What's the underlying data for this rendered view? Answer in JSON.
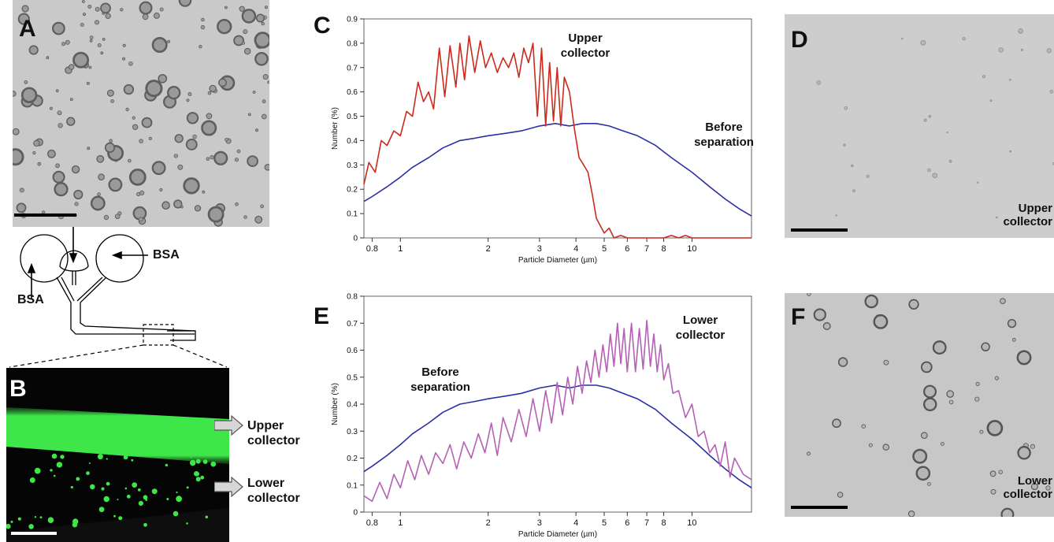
{
  "panels": {
    "A": {
      "letter": "A"
    },
    "B": {
      "letter": "B",
      "labels": {
        "upper": "Upper\ncollector",
        "lower": "Lower\ncollector"
      }
    },
    "C": {
      "letter": "C"
    },
    "D": {
      "letter": "D",
      "label": "Upper\ncollector"
    },
    "E": {
      "letter": "E"
    },
    "F": {
      "letter": "F",
      "label": "Lower\ncollector"
    }
  },
  "device": {
    "bsa_left": "BSA",
    "bsa_right": "BSA"
  },
  "colors": {
    "before": "#2b2fa4",
    "upper": "#cc2a1c",
    "lower": "#b560b5",
    "fluor": "#3ee64a"
  },
  "chart_data": [
    {
      "id": "C",
      "type": "line",
      "xlabel": "Particle Diameter (µm)",
      "ylabel": "Number (%)",
      "xscale": "log",
      "xlim": [
        0.75,
        16
      ],
      "ylim": [
        0,
        0.9
      ],
      "x_ticks": [
        0.8,
        1,
        2,
        3,
        4,
        5,
        6,
        7,
        8,
        10
      ],
      "x_tick_labels": [
        "0.8",
        "1",
        "2",
        "3",
        "4",
        "5",
        "6",
        "7",
        "8",
        "10"
      ],
      "y_ticks": [
        0,
        0.1,
        0.2,
        0.3,
        0.4,
        0.5,
        0.6,
        0.7,
        0.8,
        0.9
      ],
      "y_tick_labels": [
        "0",
        "0.1",
        "0.2",
        "0.3",
        "0.4",
        "0.5",
        "0.6",
        "0.7",
        "0.8",
        "0.9"
      ],
      "annotations": [
        "Upper\ncollector",
        "Before\nseparation"
      ],
      "series": [
        {
          "name": "Before\nseparation",
          "color": "#2b2fa4",
          "x": [
            0.75,
            0.8,
            0.9,
            1.0,
            1.1,
            1.25,
            1.4,
            1.6,
            1.8,
            2.0,
            2.3,
            2.6,
            3.0,
            3.4,
            3.8,
            4.2,
            4.7,
            5.2,
            5.8,
            6.5,
            7.5,
            8.5,
            10,
            11.5,
            13,
            14.5,
            16
          ],
          "y": [
            0.15,
            0.17,
            0.21,
            0.25,
            0.29,
            0.33,
            0.37,
            0.4,
            0.41,
            0.42,
            0.43,
            0.44,
            0.46,
            0.47,
            0.46,
            0.47,
            0.47,
            0.46,
            0.44,
            0.42,
            0.38,
            0.33,
            0.27,
            0.21,
            0.16,
            0.12,
            0.09
          ]
        },
        {
          "name": "Upper\ncollector",
          "color": "#cc2a1c",
          "x": [
            0.75,
            0.78,
            0.82,
            0.86,
            0.9,
            0.95,
            1.0,
            1.05,
            1.1,
            1.15,
            1.2,
            1.25,
            1.3,
            1.36,
            1.42,
            1.48,
            1.55,
            1.6,
            1.66,
            1.72,
            1.8,
            1.88,
            1.96,
            2.05,
            2.15,
            2.25,
            2.35,
            2.45,
            2.55,
            2.65,
            2.75,
            2.85,
            2.95,
            3.05,
            3.15,
            3.25,
            3.35,
            3.45,
            3.55,
            3.65,
            3.8,
            3.95,
            4.1,
            4.25,
            4.4,
            4.55,
            4.7,
            4.85,
            5.0,
            5.2,
            5.4,
            5.7,
            6.0,
            7.0,
            8.0,
            8.5,
            9.0,
            9.5,
            10,
            12,
            16
          ],
          "y": [
            0.22,
            0.31,
            0.27,
            0.4,
            0.38,
            0.44,
            0.42,
            0.52,
            0.5,
            0.64,
            0.56,
            0.6,
            0.53,
            0.78,
            0.58,
            0.79,
            0.62,
            0.8,
            0.65,
            0.83,
            0.68,
            0.81,
            0.7,
            0.76,
            0.68,
            0.74,
            0.7,
            0.76,
            0.66,
            0.78,
            0.72,
            0.8,
            0.5,
            0.78,
            0.46,
            0.72,
            0.48,
            0.7,
            0.46,
            0.66,
            0.6,
            0.45,
            0.33,
            0.3,
            0.27,
            0.18,
            0.08,
            0.05,
            0.02,
            0.04,
            0.0,
            0.01,
            0.0,
            0.0,
            0.0,
            0.01,
            0.0,
            0.01,
            0.0,
            0.0,
            0.0
          ]
        }
      ]
    },
    {
      "id": "E",
      "type": "line",
      "xlabel": "Particle Diameter (µm)",
      "ylabel": "Number (%)",
      "xscale": "log",
      "xlim": [
        0.75,
        16
      ],
      "ylim": [
        0,
        0.8
      ],
      "x_ticks": [
        0.8,
        1,
        2,
        3,
        4,
        5,
        6,
        7,
        8,
        10
      ],
      "x_tick_labels": [
        "0.8",
        "1",
        "2",
        "3",
        "4",
        "5",
        "6",
        "7",
        "8",
        "10"
      ],
      "y_ticks": [
        0,
        0.1,
        0.2,
        0.3,
        0.4,
        0.5,
        0.6,
        0.7,
        0.8
      ],
      "y_tick_labels": [
        "0",
        "0.1",
        "0.2",
        "0.3",
        "0.4",
        "0.5",
        "0.6",
        "0.7",
        "0.8"
      ],
      "annotations": [
        "Before\nseparation",
        "Lower\ncollector"
      ],
      "series": [
        {
          "name": "Before\nseparation",
          "color": "#2b2fa4",
          "x": [
            0.75,
            0.8,
            0.9,
            1.0,
            1.1,
            1.25,
            1.4,
            1.6,
            1.8,
            2.0,
            2.3,
            2.6,
            3.0,
            3.4,
            3.8,
            4.2,
            4.7,
            5.2,
            5.8,
            6.5,
            7.5,
            8.5,
            10,
            11.5,
            13,
            14.5,
            16
          ],
          "y": [
            0.15,
            0.17,
            0.21,
            0.25,
            0.29,
            0.33,
            0.37,
            0.4,
            0.41,
            0.42,
            0.43,
            0.44,
            0.46,
            0.47,
            0.46,
            0.47,
            0.47,
            0.46,
            0.44,
            0.42,
            0.38,
            0.33,
            0.27,
            0.21,
            0.16,
            0.12,
            0.09
          ]
        },
        {
          "name": "Lower\ncollector",
          "color": "#b560b5",
          "x": [
            0.75,
            0.8,
            0.85,
            0.9,
            0.95,
            1.0,
            1.06,
            1.12,
            1.18,
            1.25,
            1.32,
            1.4,
            1.48,
            1.56,
            1.65,
            1.75,
            1.85,
            1.95,
            2.05,
            2.15,
            2.25,
            2.4,
            2.55,
            2.7,
            2.85,
            3.0,
            3.15,
            3.3,
            3.45,
            3.6,
            3.75,
            3.9,
            4.05,
            4.2,
            4.35,
            4.5,
            4.65,
            4.8,
            4.95,
            5.1,
            5.25,
            5.4,
            5.55,
            5.7,
            5.85,
            6.0,
            6.2,
            6.4,
            6.6,
            6.8,
            7.0,
            7.2,
            7.4,
            7.6,
            7.8,
            8.0,
            8.3,
            8.6,
            9.0,
            9.5,
            10,
            10.5,
            11,
            11.5,
            12,
            12.5,
            13,
            13.5,
            14,
            15,
            16
          ],
          "y": [
            0.06,
            0.04,
            0.11,
            0.05,
            0.14,
            0.09,
            0.19,
            0.12,
            0.21,
            0.14,
            0.22,
            0.18,
            0.25,
            0.16,
            0.26,
            0.2,
            0.29,
            0.22,
            0.33,
            0.21,
            0.35,
            0.26,
            0.38,
            0.28,
            0.42,
            0.3,
            0.45,
            0.33,
            0.48,
            0.36,
            0.5,
            0.4,
            0.54,
            0.44,
            0.56,
            0.48,
            0.6,
            0.5,
            0.62,
            0.52,
            0.66,
            0.54,
            0.7,
            0.55,
            0.68,
            0.52,
            0.7,
            0.52,
            0.68,
            0.53,
            0.71,
            0.54,
            0.66,
            0.52,
            0.62,
            0.49,
            0.55,
            0.44,
            0.45,
            0.35,
            0.4,
            0.28,
            0.3,
            0.22,
            0.25,
            0.17,
            0.26,
            0.13,
            0.2,
            0.14,
            0.12
          ]
        }
      ]
    }
  ]
}
